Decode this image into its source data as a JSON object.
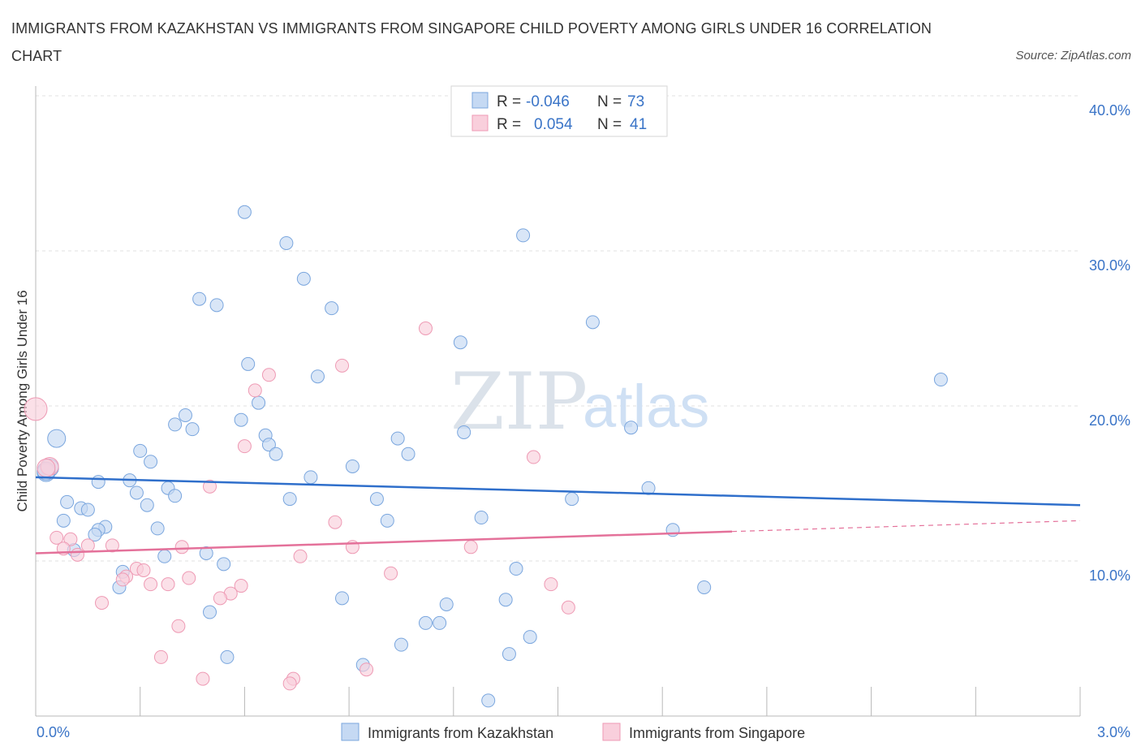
{
  "header": {
    "title": "IMMIGRANTS FROM KAZAKHSTAN VS IMMIGRANTS FROM SINGAPORE CHILD POVERTY AMONG GIRLS UNDER 16 CORRELATION CHART",
    "source": "Source: ZipAtlas.com"
  },
  "watermark": {
    "zip": "ZIP",
    "atlas": "atlas"
  },
  "colors": {
    "kazakhstan_fill": "#c5d9f3",
    "kazakhstan_stroke": "#7aa6de",
    "kazakhstan_line": "#2f6fcb",
    "singapore_fill": "#f9cfdc",
    "singapore_stroke": "#ee9ab4",
    "singapore_line": "#e4719a",
    "grid": "#e1e1e1",
    "tick_text": "#3a74c7"
  },
  "stats": {
    "rows": [
      {
        "r_label": "R =",
        "r_value": "-0.046",
        "n_label": "N =",
        "n_value": "73"
      },
      {
        "r_label": "R =",
        "r_value": "0.054",
        "n_label": "N =",
        "n_value": "41"
      }
    ]
  },
  "chart_data": {
    "type": "scatter",
    "title": "IMMIGRANTS FROM KAZAKHSTAN VS IMMIGRANTS FROM SINGAPORE CHILD POVERTY AMONG GIRLS UNDER 16 CORRELATION CHART",
    "xlabel": "",
    "ylabel": "Child Poverty Among Girls Under 16",
    "xlim": [
      0,
      3.0
    ],
    "ylim": [
      0,
      40
    ],
    "x_ticks": [
      {
        "value": 0,
        "label": "0.0%"
      },
      {
        "value": 3.0,
        "label": "3.0%"
      }
    ],
    "y_ticks": [
      {
        "value": 10,
        "label": "10.0%"
      },
      {
        "value": 20,
        "label": "20.0%"
      },
      {
        "value": 30,
        "label": "30.0%"
      },
      {
        "value": 40,
        "label": "40.0%"
      }
    ],
    "grid": true,
    "legend": "bottom",
    "series": [
      {
        "name": "Immigrants from Kazakhstan",
        "color": "#c5d9f3",
        "trend": {
          "x": [
            0,
            3.0
          ],
          "y": [
            15.4,
            13.6
          ]
        },
        "points": [
          [
            0.6,
            32.5
          ],
          [
            0.72,
            30.5
          ],
          [
            0.77,
            28.2
          ],
          [
            0.85,
            26.3
          ],
          [
            0.47,
            26.9
          ],
          [
            0.52,
            26.5
          ],
          [
            1.4,
            31.0
          ],
          [
            1.6,
            25.4
          ],
          [
            1.22,
            24.1
          ],
          [
            0.61,
            22.7
          ],
          [
            0.81,
            21.9
          ],
          [
            2.6,
            21.7
          ],
          [
            0.64,
            20.2
          ],
          [
            0.43,
            19.4
          ],
          [
            0.4,
            18.8
          ],
          [
            0.45,
            18.5
          ],
          [
            0.59,
            19.1
          ],
          [
            0.66,
            18.1
          ],
          [
            0.67,
            17.5
          ],
          [
            0.69,
            16.9
          ],
          [
            1.04,
            17.9
          ],
          [
            1.07,
            16.9
          ],
          [
            1.23,
            18.3
          ],
          [
            1.71,
            18.6
          ],
          [
            0.06,
            17.9
          ],
          [
            0.3,
            17.1
          ],
          [
            0.33,
            16.4
          ],
          [
            0.04,
            16.0
          ],
          [
            0.03,
            15.7
          ],
          [
            0.18,
            15.1
          ],
          [
            0.27,
            15.2
          ],
          [
            0.38,
            14.7
          ],
          [
            0.29,
            14.4
          ],
          [
            0.4,
            14.2
          ],
          [
            0.32,
            13.6
          ],
          [
            0.09,
            13.8
          ],
          [
            0.13,
            13.4
          ],
          [
            0.15,
            13.3
          ],
          [
            0.79,
            15.4
          ],
          [
            0.91,
            16.1
          ],
          [
            0.73,
            14.0
          ],
          [
            0.98,
            14.0
          ],
          [
            1.54,
            14.0
          ],
          [
            1.76,
            14.7
          ],
          [
            0.08,
            12.6
          ],
          [
            0.2,
            12.2
          ],
          [
            0.18,
            12.0
          ],
          [
            0.17,
            11.7
          ],
          [
            0.35,
            12.1
          ],
          [
            1.01,
            12.6
          ],
          [
            1.28,
            12.8
          ],
          [
            1.83,
            12.0
          ],
          [
            0.11,
            10.7
          ],
          [
            0.37,
            10.3
          ],
          [
            0.49,
            10.5
          ],
          [
            0.54,
            9.8
          ],
          [
            0.25,
            9.3
          ],
          [
            0.24,
            8.3
          ],
          [
            1.38,
            9.5
          ],
          [
            1.92,
            8.3
          ],
          [
            0.88,
            7.6
          ],
          [
            1.35,
            7.5
          ],
          [
            1.18,
            7.2
          ],
          [
            0.5,
            6.7
          ],
          [
            1.12,
            6.0
          ],
          [
            1.16,
            6.0
          ],
          [
            1.42,
            5.1
          ],
          [
            1.05,
            4.6
          ],
          [
            1.36,
            4.0
          ],
          [
            0.55,
            3.8
          ],
          [
            0.94,
            3.3
          ],
          [
            1.3,
            1.0
          ],
          [
            0.03,
            15.8
          ]
        ]
      },
      {
        "name": "Immigrants from Singapore",
        "color": "#f9cfdc",
        "trend": {
          "x": [
            0,
            2.0
          ],
          "y": [
            10.5,
            11.9
          ]
        },
        "points": [
          [
            1.12,
            25.0
          ],
          [
            0.88,
            22.6
          ],
          [
            0.67,
            22.0
          ],
          [
            0.63,
            21.0
          ],
          [
            0.0,
            19.8
          ],
          [
            0.6,
            17.4
          ],
          [
            1.43,
            16.7
          ],
          [
            0.04,
            16.1
          ],
          [
            0.5,
            14.8
          ],
          [
            0.86,
            12.5
          ],
          [
            0.06,
            11.5
          ],
          [
            0.1,
            11.4
          ],
          [
            0.15,
            11.0
          ],
          [
            0.08,
            10.8
          ],
          [
            0.12,
            10.4
          ],
          [
            0.22,
            11.0
          ],
          [
            0.42,
            10.9
          ],
          [
            0.76,
            10.3
          ],
          [
            0.91,
            10.9
          ],
          [
            1.25,
            10.9
          ],
          [
            0.29,
            9.5
          ],
          [
            0.31,
            9.4
          ],
          [
            0.26,
            9.0
          ],
          [
            0.25,
            8.8
          ],
          [
            0.33,
            8.5
          ],
          [
            0.38,
            8.5
          ],
          [
            0.44,
            8.9
          ],
          [
            0.59,
            8.4
          ],
          [
            0.56,
            7.9
          ],
          [
            0.53,
            7.6
          ],
          [
            1.02,
            9.2
          ],
          [
            1.48,
            8.5
          ],
          [
            1.53,
            7.0
          ],
          [
            0.19,
            7.3
          ],
          [
            0.41,
            5.8
          ],
          [
            0.36,
            3.8
          ],
          [
            0.48,
            2.4
          ],
          [
            0.74,
            2.4
          ],
          [
            0.73,
            2.1
          ],
          [
            0.95,
            3.0
          ],
          [
            0.03,
            16.0
          ]
        ]
      }
    ]
  },
  "legend": {
    "items": [
      {
        "label": "Immigrants from Kazakhstan"
      },
      {
        "label": "Immigrants from Singapore"
      }
    ]
  }
}
